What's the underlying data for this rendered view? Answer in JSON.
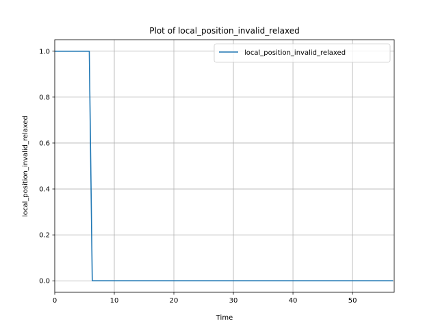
{
  "chart_data": {
    "type": "line",
    "title": "Plot of local_position_invalid_relaxed",
    "xlabel": "Time",
    "ylabel": "local_position_invalid_relaxed",
    "xlim": [
      0,
      57
    ],
    "ylim": [
      -0.05,
      1.05
    ],
    "xticks": [
      0,
      10,
      20,
      30,
      40,
      50
    ],
    "yticks": [
      0.0,
      0.2,
      0.4,
      0.6,
      0.8,
      1.0
    ],
    "xtick_labels": [
      "0",
      "10",
      "20",
      "30",
      "40",
      "50"
    ],
    "ytick_labels": [
      "0.0",
      "0.2",
      "0.4",
      "0.6",
      "0.8",
      "1.0"
    ],
    "grid": true,
    "legend_position": "top-right",
    "series": [
      {
        "name": "local_position_invalid_relaxed",
        "color": "#1f77b4",
        "x": [
          0,
          5.8,
          6.3,
          56.8
        ],
        "y": [
          1.0,
          1.0,
          0.0,
          0.0
        ]
      }
    ]
  }
}
